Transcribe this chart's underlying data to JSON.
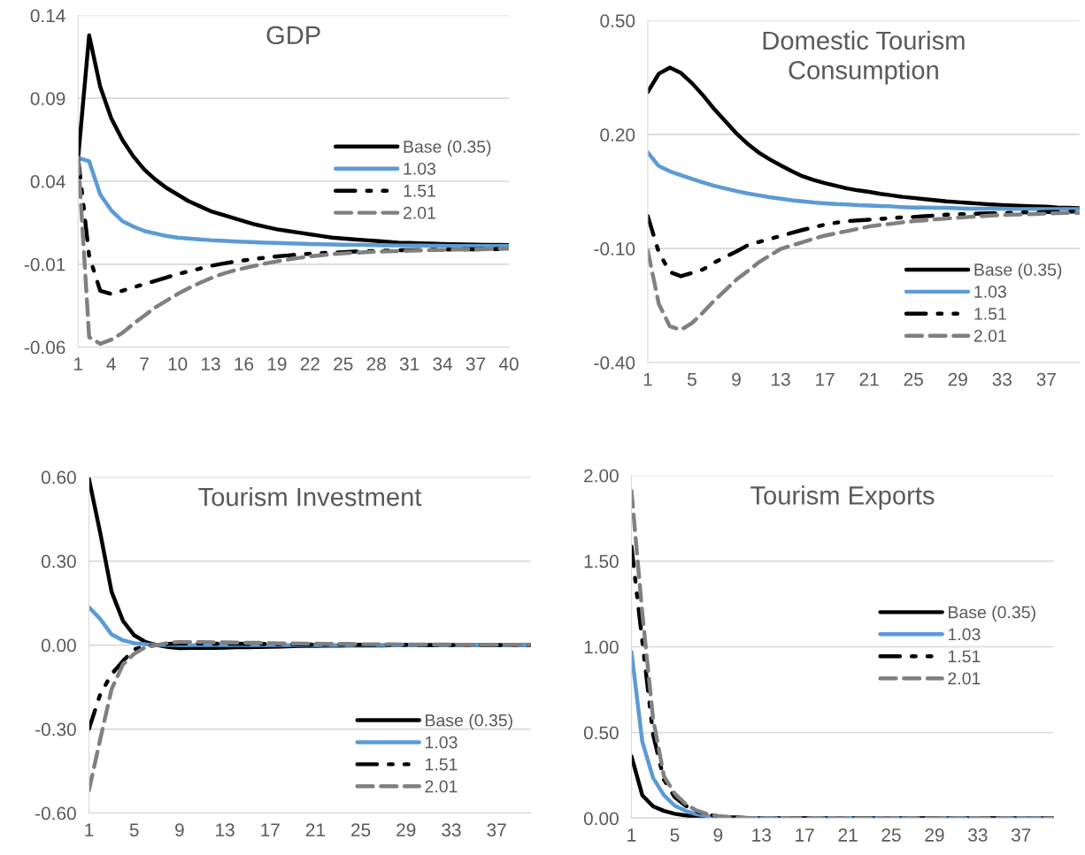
{
  "chart_data": [
    {
      "type": "line",
      "title": "GDP",
      "categories": [
        "1",
        null,
        null,
        "4",
        null,
        null,
        "7",
        null,
        null,
        "10",
        null,
        null,
        "13",
        null,
        null,
        "16",
        null,
        null,
        "19",
        null,
        null,
        "22",
        null,
        null,
        "25",
        null,
        null,
        "28",
        null,
        null,
        "31",
        null,
        null,
        "34",
        null,
        null,
        "37",
        null,
        null,
        "40"
      ],
      "ylim": [
        -0.06,
        0.14
      ],
      "yticks": [
        -0.06,
        -0.01,
        0.04,
        0.09,
        0.14
      ],
      "grid": "y",
      "legend": "center right",
      "series": [
        {
          "name": "Base (0.35)",
          "color": "#000000",
          "line_style": "solid",
          "values": [
            0.054,
            0.128,
            0.097,
            0.078,
            0.065,
            0.055,
            0.047,
            0.041,
            0.036,
            0.032,
            0.028,
            0.025,
            0.022,
            0.02,
            0.018,
            0.016,
            0.014,
            0.0125,
            0.011,
            0.01,
            0.009,
            0.008,
            0.007,
            0.006,
            0.0055,
            0.005,
            0.0045,
            0.004,
            0.0035,
            0.003,
            0.0028,
            0.0026,
            0.0024,
            0.0022,
            0.002,
            0.0019,
            0.0018,
            0.0017,
            0.0016,
            0.0015
          ]
        },
        {
          "name": "1.03",
          "color": "#5b9bd5",
          "line_style": "solid",
          "values": [
            0.054,
            0.052,
            0.032,
            0.0225,
            0.016,
            0.0127,
            0.01,
            0.0085,
            0.007,
            0.006,
            0.0055,
            0.005,
            0.0045,
            0.0042,
            0.0038,
            0.0035,
            0.0032,
            0.003,
            0.0028,
            0.0026,
            0.0024,
            0.0022,
            0.002,
            0.0019,
            0.0018,
            0.0017,
            0.0016,
            0.0015,
            0.0014,
            0.0013,
            0.0012,
            0.0012,
            0.0011,
            0.0011,
            0.001,
            0.001,
            0.001,
            0.001,
            0.001,
            0.001
          ]
        },
        {
          "name": "1.51",
          "color": "#000000",
          "line_style": "dashdot",
          "values": [
            0.054,
            -0.005,
            -0.026,
            -0.028,
            -0.026,
            -0.024,
            -0.022,
            -0.02,
            -0.018,
            -0.016,
            -0.0143,
            -0.0127,
            -0.011,
            -0.0098,
            -0.0087,
            -0.0077,
            -0.0068,
            -0.006,
            -0.0053,
            -0.0047,
            -0.0042,
            -0.0037,
            -0.0033,
            -0.003,
            -0.0027,
            -0.0024,
            -0.0022,
            -0.002,
            -0.0018,
            -0.0016,
            -0.0015,
            -0.0014,
            -0.0013,
            -0.0012,
            -0.0011,
            -0.001,
            -0.001,
            -0.0009,
            -0.0009,
            -0.0008
          ]
        },
        {
          "name": "2.01",
          "color": "#808080",
          "line_style": "dashed",
          "values": [
            0.054,
            -0.054,
            -0.058,
            -0.0555,
            -0.0515,
            -0.046,
            -0.041,
            -0.036,
            -0.032,
            -0.028,
            -0.0245,
            -0.0213,
            -0.0185,
            -0.016,
            -0.014,
            -0.0124,
            -0.011,
            -0.0095,
            -0.0083,
            -0.0072,
            -0.0062,
            -0.0052,
            -0.0046,
            -0.004,
            -0.0035,
            -0.0031,
            -0.0028,
            -0.0025,
            -0.0023,
            -0.0021,
            -0.0019,
            -0.0017,
            -0.0015,
            -0.0014,
            -0.0012,
            -0.0011,
            -0.001,
            -0.0009,
            -0.0008,
            -0.0007
          ]
        }
      ]
    },
    {
      "type": "line",
      "title": "Domestic Tourism\nConsumption",
      "categories": [
        "1",
        null,
        null,
        null,
        "5",
        null,
        null,
        null,
        "9",
        null,
        null,
        null,
        "13",
        null,
        null,
        null,
        "17",
        null,
        null,
        null,
        "21",
        null,
        null,
        null,
        "25",
        null,
        null,
        null,
        "29",
        null,
        null,
        null,
        "33",
        null,
        null,
        null,
        "37",
        null,
        null,
        null
      ],
      "ylim": [
        -0.4,
        0.5
      ],
      "yticks": [
        {
          "value": -0.4,
          "label": "-0.40"
        },
        {
          "value": -0.1,
          "label": "-0.10"
        },
        {
          "value": 0.2,
          "label": "0.20"
        },
        {
          "value": 0.5,
          "label": "0.50"
        }
      ],
      "grid": "y",
      "legend": "lower right",
      "series": [
        {
          "name": "Base (0.35)",
          "color": "#000000",
          "line_style": "solid",
          "values": [
            0.312,
            0.36,
            0.376,
            0.362,
            0.335,
            0.303,
            0.267,
            0.235,
            0.203,
            0.176,
            0.153,
            0.135,
            0.119,
            0.104,
            0.09,
            0.08,
            0.072,
            0.065,
            0.058,
            0.053,
            0.049,
            0.044,
            0.04,
            0.036,
            0.033,
            0.03,
            0.027,
            0.024,
            0.022,
            0.02,
            0.018,
            0.016,
            0.0145,
            0.013,
            0.012,
            0.011,
            0.01,
            0.008,
            0.007,
            0.006
          ]
        },
        {
          "name": "1.03",
          "color": "#5b9bd5",
          "line_style": "solid",
          "values": [
            0.153,
            0.117,
            0.103,
            0.093,
            0.083,
            0.074,
            0.065,
            0.058,
            0.051,
            0.045,
            0.04,
            0.035,
            0.031,
            0.027,
            0.024,
            0.021,
            0.019,
            0.017,
            0.016,
            0.014,
            0.013,
            0.012,
            0.011,
            0.009,
            0.008,
            0.008,
            0.007,
            0.007,
            0.006,
            0.005,
            0.005,
            0.005,
            0.005,
            0.004,
            0.004,
            0.004,
            0.004,
            0.004,
            0.004,
            0.004
          ]
        },
        {
          "name": "1.51",
          "color": "#000000",
          "line_style": "dashdot",
          "values": [
            -0.0145,
            -0.11,
            -0.162,
            -0.173,
            -0.164,
            -0.155,
            -0.137,
            -0.122,
            -0.108,
            -0.092,
            -0.083,
            -0.075,
            -0.067,
            -0.059,
            -0.051,
            -0.044,
            -0.037,
            -0.032,
            -0.028,
            -0.026,
            -0.024,
            -0.022,
            -0.02,
            -0.018,
            -0.017,
            -0.015,
            -0.013,
            -0.011,
            -0.01,
            -0.009,
            -0.008,
            -0.007,
            -0.007,
            -0.006,
            -0.005,
            -0.005,
            -0.004,
            -0.004,
            -0.003,
            -0.003
          ]
        },
        {
          "name": "2.01",
          "color": "#808080",
          "line_style": "dashed",
          "values": [
            -0.105,
            -0.246,
            -0.305,
            -0.314,
            -0.296,
            -0.268,
            -0.237,
            -0.21,
            -0.182,
            -0.16,
            -0.137,
            -0.119,
            -0.101,
            -0.092,
            -0.083,
            -0.074,
            -0.066,
            -0.06,
            -0.054,
            -0.048,
            -0.042,
            -0.038,
            -0.035,
            -0.031,
            -0.028,
            -0.026,
            -0.023,
            -0.021,
            -0.019,
            -0.017,
            -0.015,
            -0.013,
            -0.012,
            -0.011,
            -0.01,
            -0.009,
            -0.008,
            -0.007,
            -0.006,
            -0.006
          ]
        }
      ]
    },
    {
      "type": "line",
      "title": "Tourism Investment",
      "categories": [
        "1",
        null,
        null,
        null,
        "5",
        null,
        null,
        null,
        "9",
        null,
        null,
        null,
        "13",
        null,
        null,
        null,
        "17",
        null,
        null,
        null,
        "21",
        null,
        null,
        null,
        "25",
        null,
        null,
        null,
        "29",
        null,
        null,
        null,
        "33",
        null,
        null,
        null,
        "37",
        null,
        null,
        null
      ],
      "ylim": [
        -0.6,
        0.6
      ],
      "yticks": [
        {
          "value": -0.6,
          "label": "-0.60"
        },
        {
          "value": -0.3,
          "label": "-0.30"
        },
        {
          "value": 0,
          "label": "0.00"
        },
        {
          "value": 0.3,
          "label": "0.30"
        },
        {
          "value": 0.6,
          "label": "0.60"
        }
      ],
      "grid": "y",
      "legend": "lower right",
      "series": [
        {
          "name": "Base (0.35)",
          "color": "#000000",
          "line_style": "solid",
          "values": [
            0.593,
            0.4,
            0.19,
            0.087,
            0.035,
            0.011,
            0,
            -0.007,
            -0.011,
            -0.01,
            -0.01,
            -0.01,
            -0.009,
            -0.008,
            -0.008,
            -0.007,
            -0.006,
            -0.005,
            -0.004,
            -0.003,
            -0.003,
            -0.002,
            -0.002,
            -0.001,
            -0.001,
            -0.001,
            -0.001,
            0,
            0,
            0,
            0,
            0,
            0,
            0,
            0,
            0,
            0,
            0,
            0,
            0
          ]
        },
        {
          "name": "1.03",
          "color": "#5b9bd5",
          "line_style": "solid",
          "values": [
            0.135,
            0.093,
            0.038,
            0.017,
            0.007,
            0.003,
            0.001,
            0,
            0,
            0,
            0,
            0,
            0,
            0,
            0,
            0,
            0,
            0,
            0,
            0,
            0,
            0,
            0,
            0,
            0,
            0,
            0,
            0,
            0,
            0,
            0,
            0,
            0,
            0,
            0,
            0,
            0,
            0,
            0,
            0
          ]
        },
        {
          "name": "1.51",
          "color": "#000000",
          "line_style": "dashdot",
          "values": [
            -0.299,
            -0.175,
            -0.104,
            -0.057,
            -0.015,
            -0.004,
            0,
            0.004,
            0.006,
            0.006,
            0.006,
            0.005,
            0.005,
            0.005,
            0.004,
            0.004,
            0.004,
            0.003,
            0.003,
            0.002,
            0.002,
            0.002,
            0.002,
            0.001,
            0.001,
            0.001,
            0.001,
            0.001,
            0.001,
            0.001,
            0,
            0,
            0,
            0,
            0,
            0,
            0,
            0,
            0,
            0
          ]
        },
        {
          "name": "2.01",
          "color": "#808080",
          "line_style": "dashed",
          "values": [
            -0.518,
            -0.335,
            -0.157,
            -0.069,
            -0.031,
            -0.007,
            0,
            0.008,
            0.011,
            0.011,
            0.011,
            0.01,
            0.01,
            0.009,
            0.008,
            0.008,
            0.007,
            0.006,
            0.006,
            0.005,
            0.005,
            0.004,
            0.004,
            0.004,
            0.003,
            0.003,
            0.003,
            0.003,
            0.002,
            0.002,
            0.002,
            0.002,
            0.002,
            0.001,
            0.001,
            0.001,
            0.001,
            0.001,
            0.001,
            0.001
          ]
        }
      ]
    },
    {
      "type": "line",
      "title": "Tourism Exports",
      "categories": [
        "1",
        null,
        null,
        null,
        "5",
        null,
        null,
        null,
        "9",
        null,
        null,
        null,
        "13",
        null,
        null,
        null,
        "17",
        null,
        null,
        null,
        "21",
        null,
        null,
        null,
        "25",
        null,
        null,
        null,
        "29",
        null,
        null,
        null,
        "33",
        null,
        null,
        null,
        "37",
        null,
        null,
        null
      ],
      "ylim": [
        0,
        2
      ],
      "yticks": [
        {
          "value": 0,
          "label": "0.00"
        },
        {
          "value": 0.5,
          "label": "0.50"
        },
        {
          "value": 1,
          "label": "1.00"
        },
        {
          "value": 1.5,
          "label": "1.50"
        },
        {
          "value": 2,
          "label": "2.00"
        }
      ],
      "grid": "y",
      "legend": "center right",
      "series": [
        {
          "name": "Base (0.35)",
          "color": "#000000",
          "line_style": "solid",
          "values": [
            0.362,
            0.134,
            0.069,
            0.043,
            0.026,
            0.016,
            0.009,
            0.005,
            0.003,
            0.002,
            0.001,
            0,
            0,
            0,
            0,
            0,
            0,
            0,
            0,
            0,
            0,
            0,
            0,
            0,
            0,
            0,
            0,
            0,
            0,
            0,
            0,
            0,
            0,
            0,
            0,
            0,
            0,
            0,
            0,
            0
          ]
        },
        {
          "name": "1.03",
          "color": "#5b9bd5",
          "line_style": "solid",
          "values": [
            0.97,
            0.447,
            0.235,
            0.134,
            0.073,
            0.043,
            0.024,
            0.013,
            0.007,
            0.004,
            0.002,
            0,
            0,
            0,
            0,
            0,
            0,
            0,
            0,
            0,
            0,
            0,
            0,
            0,
            0,
            0,
            0,
            0,
            0,
            0,
            0,
            0,
            0,
            0,
            0,
            0,
            0,
            0,
            0,
            0
          ]
        },
        {
          "name": "1.51",
          "color": "#000000",
          "line_style": "dashdot",
          "values": [
            1.585,
            1.034,
            0.488,
            0.225,
            0.123,
            0.073,
            0.04,
            0.022,
            0.012,
            0.006,
            0.003,
            0,
            0,
            0,
            0,
            0,
            0,
            0,
            0,
            0,
            0,
            0,
            0,
            0,
            0,
            0,
            0,
            0,
            0,
            0,
            0,
            0,
            0,
            0,
            0,
            0,
            0,
            0,
            0,
            0
          ]
        },
        {
          "name": "2.01",
          "color": "#808080",
          "line_style": "dashed",
          "values": [
            1.909,
            1.196,
            0.58,
            0.245,
            0.144,
            0.083,
            0.045,
            0.025,
            0.013,
            0.007,
            0.003,
            0,
            0,
            0,
            0,
            0,
            0,
            0,
            0,
            0,
            0,
            0,
            0,
            0,
            0,
            0,
            0,
            0,
            0,
            0,
            0,
            0,
            0,
            0,
            0,
            0,
            0,
            0,
            0,
            0
          ]
        }
      ]
    }
  ]
}
